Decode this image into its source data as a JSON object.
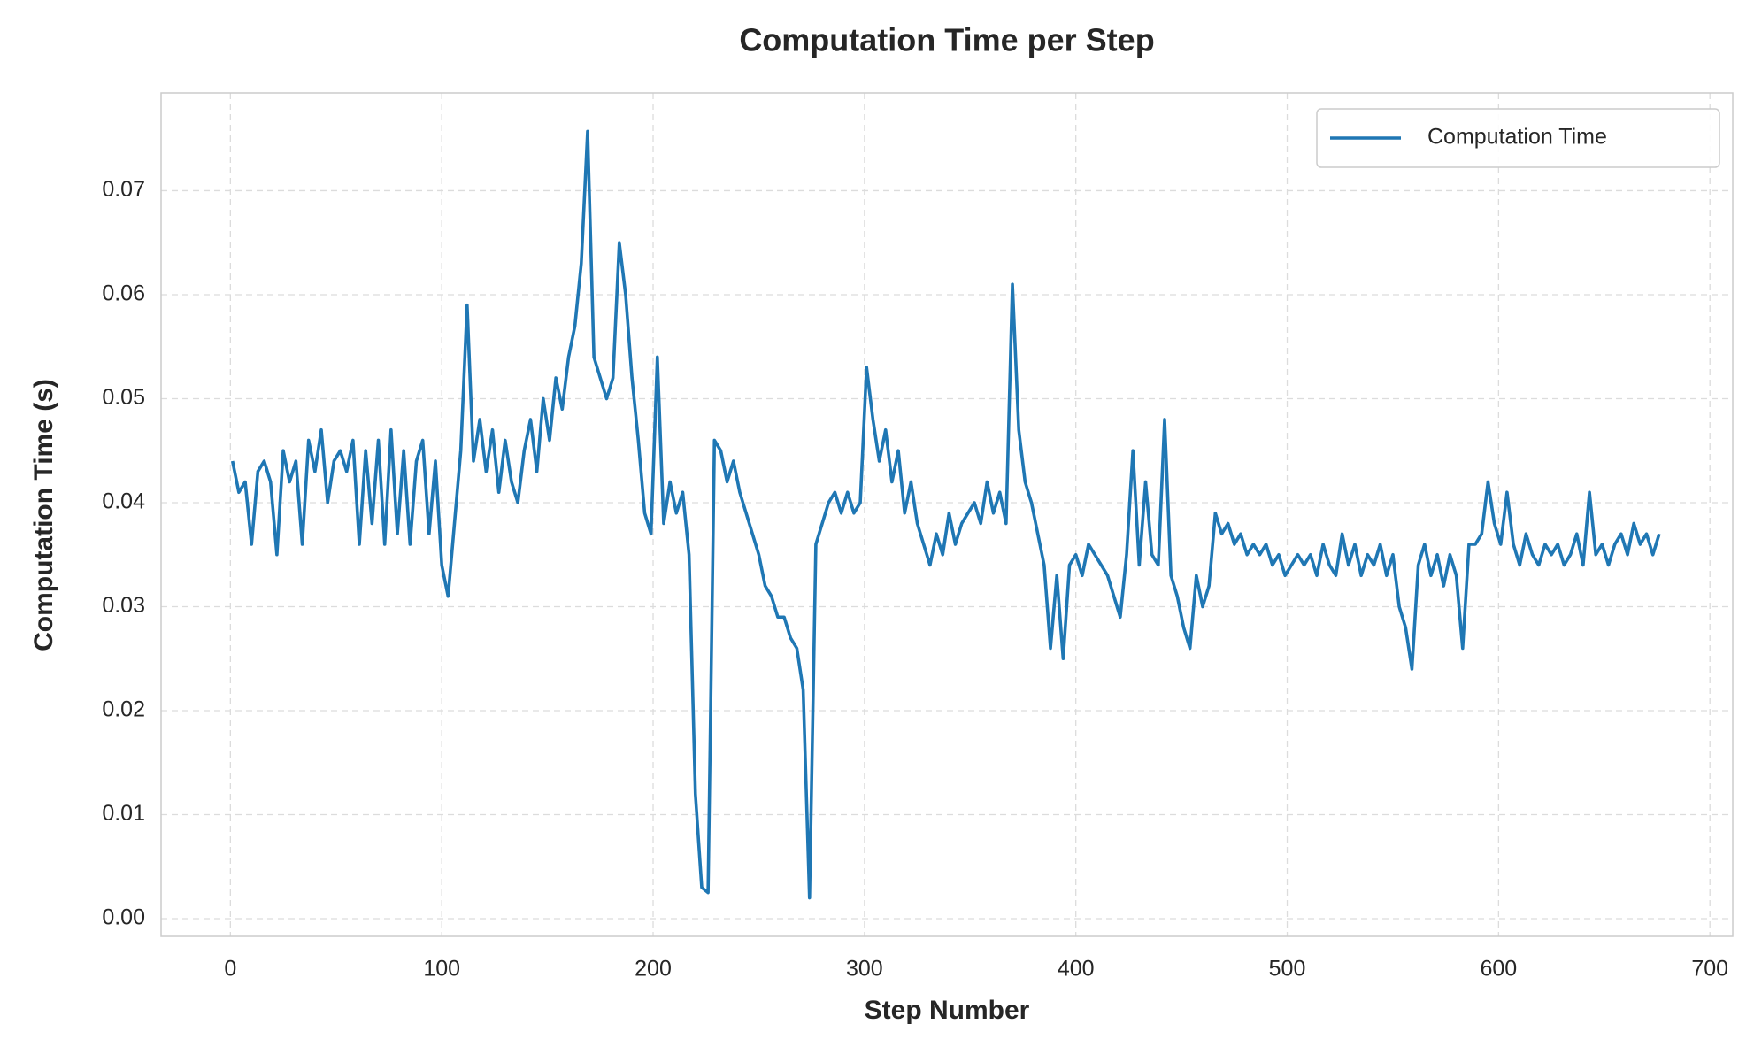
{
  "chart_data": {
    "type": "line",
    "title": "Computation Time per Step",
    "x_label": "Step Number",
    "y_label": "Computation Time (s)",
    "xlim": [
      -32.8,
      710.8
    ],
    "ylim": [
      -0.0017,
      0.0794
    ],
    "xticks": [
      0,
      100,
      200,
      300,
      400,
      500,
      600,
      700
    ],
    "yticks": [
      {
        "value": 0,
        "label": "0.00"
      },
      {
        "value": 0.01,
        "label": "0.01"
      },
      {
        "value": 0.02,
        "label": "0.02"
      },
      {
        "value": 0.03,
        "label": "0.03"
      },
      {
        "value": 0.04,
        "label": "0.04"
      },
      {
        "value": 0.05,
        "label": "0.05"
      },
      {
        "value": 0.06,
        "label": "0.06"
      },
      {
        "value": 0.07,
        "label": "0.07"
      }
    ],
    "grid": true,
    "legend": "upper right",
    "x": [
      1,
      4,
      7,
      10,
      13,
      16,
      19,
      22,
      25,
      28,
      31,
      34,
      37,
      40,
      43,
      46,
      49,
      52,
      55,
      58,
      61,
      64,
      67,
      70,
      73,
      76,
      79,
      82,
      85,
      88,
      91,
      94,
      97,
      100,
      103,
      106,
      109,
      112,
      115,
      118,
      121,
      124,
      127,
      130,
      133,
      136,
      139,
      142,
      145,
      148,
      151,
      154,
      157,
      160,
      163,
      166,
      169,
      172,
      175,
      178,
      181,
      184,
      187,
      190,
      193,
      196,
      199,
      202,
      205,
      208,
      211,
      214,
      217,
      220,
      223,
      226,
      229,
      232,
      235,
      238,
      241,
      244,
      247,
      250,
      253,
      256,
      259,
      262,
      265,
      268,
      271,
      274,
      277,
      280,
      283,
      286,
      289,
      292,
      295,
      298,
      301,
      304,
      307,
      310,
      313,
      316,
      319,
      322,
      325,
      328,
      331,
      334,
      337,
      340,
      343,
      346,
      349,
      352,
      355,
      358,
      361,
      364,
      367,
      370,
      373,
      376,
      379,
      382,
      385,
      388,
      391,
      394,
      397,
      400,
      403,
      406,
      409,
      412,
      415,
      418,
      421,
      424,
      427,
      430,
      433,
      436,
      439,
      442,
      445,
      448,
      451,
      454,
      457,
      460,
      463,
      466,
      469,
      472,
      475,
      478,
      481,
      484,
      487,
      490,
      493,
      496,
      499,
      502,
      505,
      508,
      511,
      514,
      517,
      520,
      523,
      526,
      529,
      532,
      535,
      538,
      541,
      544,
      547,
      550,
      553,
      556,
      559,
      562,
      565,
      568,
      571,
      574,
      577,
      580,
      583,
      586,
      589,
      592,
      595,
      598,
      601,
      604,
      607,
      610,
      613,
      616,
      619,
      622,
      625,
      628,
      631,
      634,
      637,
      640,
      643,
      646,
      649,
      652,
      655,
      658,
      661,
      664,
      667,
      670,
      673,
      676
    ],
    "series": [
      {
        "name": "Computation Time",
        "color": "#1f77b4",
        "values": [
          0.044,
          0.041,
          0.042,
          0.036,
          0.043,
          0.044,
          0.042,
          0.035,
          0.045,
          0.042,
          0.044,
          0.036,
          0.046,
          0.043,
          0.047,
          0.04,
          0.044,
          0.045,
          0.043,
          0.046,
          0.036,
          0.045,
          0.038,
          0.046,
          0.036,
          0.047,
          0.037,
          0.045,
          0.036,
          0.044,
          0.046,
          0.037,
          0.044,
          0.034,
          0.031,
          0.038,
          0.045,
          0.059,
          0.044,
          0.048,
          0.043,
          0.047,
          0.041,
          0.046,
          0.042,
          0.04,
          0.045,
          0.048,
          0.043,
          0.05,
          0.046,
          0.052,
          0.049,
          0.054,
          0.057,
          0.063,
          0.0757,
          0.054,
          0.052,
          0.05,
          0.052,
          0.065,
          0.06,
          0.052,
          0.046,
          0.039,
          0.037,
          0.054,
          0.038,
          0.042,
          0.039,
          0.041,
          0.035,
          0.012,
          0.003,
          0.0025,
          0.046,
          0.045,
          0.042,
          0.044,
          0.041,
          0.039,
          0.037,
          0.035,
          0.032,
          0.031,
          0.029,
          0.029,
          0.027,
          0.026,
          0.022,
          0.002,
          0.036,
          0.038,
          0.04,
          0.041,
          0.039,
          0.041,
          0.039,
          0.04,
          0.053,
          0.048,
          0.044,
          0.047,
          0.042,
          0.045,
          0.039,
          0.042,
          0.038,
          0.036,
          0.034,
          0.037,
          0.035,
          0.039,
          0.036,
          0.038,
          0.039,
          0.04,
          0.038,
          0.042,
          0.039,
          0.041,
          0.038,
          0.061,
          0.047,
          0.042,
          0.04,
          0.037,
          0.034,
          0.026,
          0.033,
          0.025,
          0.034,
          0.035,
          0.033,
          0.036,
          0.035,
          0.034,
          0.033,
          0.031,
          0.029,
          0.035,
          0.045,
          0.034,
          0.042,
          0.035,
          0.034,
          0.048,
          0.033,
          0.031,
          0.028,
          0.026,
          0.033,
          0.03,
          0.032,
          0.039,
          0.037,
          0.038,
          0.036,
          0.037,
          0.035,
          0.036,
          0.035,
          0.036,
          0.034,
          0.035,
          0.033,
          0.034,
          0.035,
          0.034,
          0.035,
          0.033,
          0.036,
          0.034,
          0.033,
          0.037,
          0.034,
          0.036,
          0.033,
          0.035,
          0.034,
          0.036,
          0.033,
          0.035,
          0.03,
          0.028,
          0.024,
          0.034,
          0.036,
          0.033,
          0.035,
          0.032,
          0.035,
          0.033,
          0.026,
          0.036,
          0.036,
          0.037,
          0.042,
          0.038,
          0.036,
          0.041,
          0.036,
          0.034,
          0.037,
          0.035,
          0.034,
          0.036,
          0.035,
          0.036,
          0.034,
          0.035,
          0.037,
          0.034,
          0.041,
          0.035,
          0.036,
          0.034,
          0.036,
          0.037,
          0.035,
          0.038,
          0.036,
          0.037,
          0.035,
          0.037
        ]
      }
    ]
  }
}
